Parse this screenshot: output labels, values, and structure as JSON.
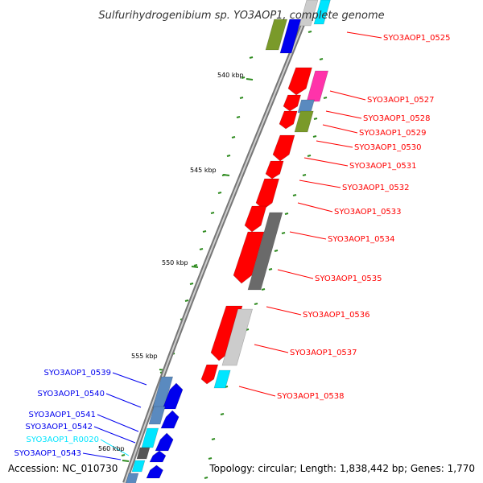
{
  "title": "Sulfurihydrogenibium sp. YO3AOP1, complete genome",
  "accession": "Accession: NC_010730",
  "topology": "Topology: circular; Length: 1,838,442 bp; Genes: 1,770",
  "kbp_labels": [
    "540 kbp",
    "545 kbp",
    "550 kbp",
    "555 kbp",
    "560 kbp"
  ],
  "colors": {
    "red": "#ff0000",
    "magenta": "#ff33aa",
    "olive": "#7a9a2a",
    "steel": "#5a8abf",
    "blue": "#0000ee",
    "cyan": "#00e5ff",
    "gray": "#8a8a8a",
    "light_gray": "#cccccc",
    "tick_green": "#2e8b1f",
    "backbone": "#888888"
  },
  "right_labels": [
    {
      "text": "SYO3AOP1_0525",
      "color": "red"
    },
    {
      "text": "SYO3AOP1_0527",
      "color": "red"
    },
    {
      "text": "SYO3AOP1_0528",
      "color": "red"
    },
    {
      "text": "SYO3AOP1_0529",
      "color": "red"
    },
    {
      "text": "SYO3AOP1_0530",
      "color": "red"
    },
    {
      "text": "SYO3AOP1_0531",
      "color": "red"
    },
    {
      "text": "SYO3AOP1_0532",
      "color": "red"
    },
    {
      "text": "SYO3AOP1_0533",
      "color": "red"
    },
    {
      "text": "SYO3AOP1_0534",
      "color": "red"
    },
    {
      "text": "SYO3AOP1_0535",
      "color": "red"
    },
    {
      "text": "SYO3AOP1_0536",
      "color": "red"
    },
    {
      "text": "SYO3AOP1_0537",
      "color": "red"
    },
    {
      "text": "SYO3AOP1_0538",
      "color": "red"
    }
  ],
  "left_labels": [
    {
      "text": "SYO3AOP1_0539",
      "color": "blue"
    },
    {
      "text": "SYO3AOP1_0540",
      "color": "blue"
    },
    {
      "text": "SYO3AOP1_0541",
      "color": "blue"
    },
    {
      "text": "SYO3AOP1_0542",
      "color": "blue"
    },
    {
      "text": "SYO3AOP1_R0020",
      "color": "cyan"
    },
    {
      "text": "SYO3AOP1_0543",
      "color": "blue"
    }
  ]
}
